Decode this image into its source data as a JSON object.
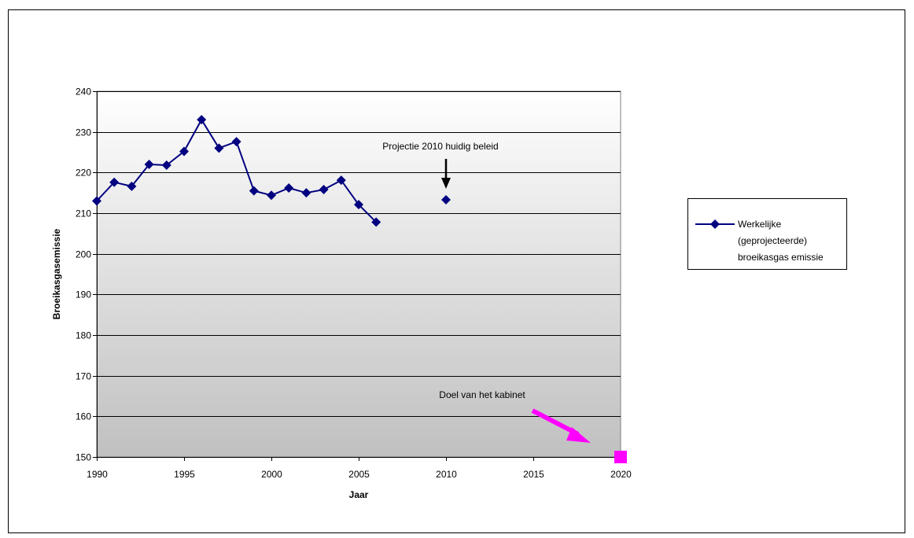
{
  "chart_data": {
    "type": "line",
    "title": "",
    "xlabel": "Jaar",
    "ylabel": "Broeikasgasemissie",
    "xlim": [
      1990,
      2020
    ],
    "ylim": [
      150,
      240
    ],
    "x_ticks": [
      1990,
      1995,
      2000,
      2005,
      2010,
      2015,
      2020
    ],
    "y_ticks": [
      150,
      160,
      170,
      180,
      190,
      200,
      210,
      220,
      230,
      240
    ],
    "grid": true,
    "legend_position": "right",
    "series": [
      {
        "name": "Werkelijke (geprojecteerde) broeikasgas emissie",
        "color": "#000080",
        "marker": "diamond",
        "x": [
          1990,
          1991,
          1992,
          1993,
          1994,
          1995,
          1996,
          1997,
          1998,
          1999,
          2000,
          2001,
          2002,
          2003,
          2004,
          2005,
          2006,
          2010
        ],
        "y": [
          213,
          217.6,
          216.6,
          222,
          221.8,
          225.2,
          233,
          226,
          227.6,
          215.5,
          214.4,
          216.2,
          215,
          215.8,
          218.1,
          212.1,
          207.8,
          213.3
        ],
        "connected_until": 2006
      }
    ],
    "legend": {
      "line1": "Werkelijke",
      "line2": "(geprojecteerde)",
      "line3": "broeikasgas emissie"
    },
    "target_point": {
      "x": 2020,
      "y": 150,
      "color": "#ff00ff"
    },
    "annotations": {
      "projection_text": "Projectie 2010 huidig beleid",
      "target_text": "Doel van het kabinet"
    },
    "colors": {
      "series": "#000080",
      "target": "#ff00ff",
      "plot_bg_top": "#ffffff",
      "plot_bg_bottom": "#c0c0c0",
      "arrow_black": "#000000"
    }
  }
}
